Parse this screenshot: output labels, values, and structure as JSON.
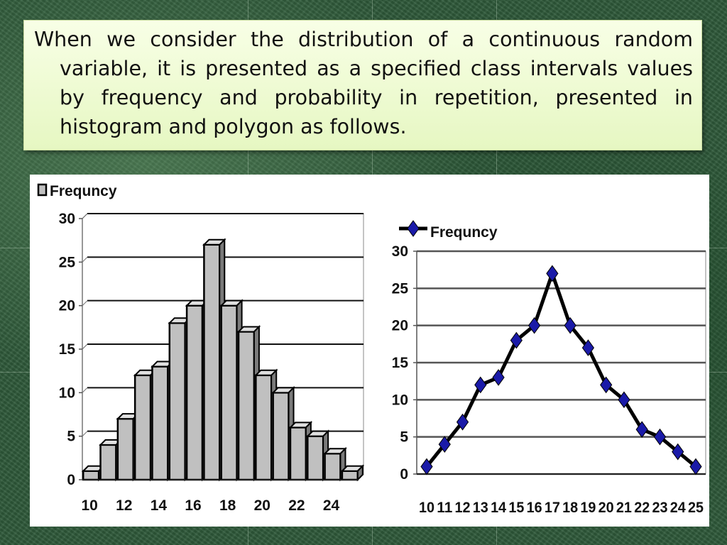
{
  "slide": {
    "text": "When we consider the distribution of a continuous random variable, it is presented as a specified class intervals values by frequency and probability in repetition, presented in histogram and polygon as follows."
  },
  "colors": {
    "background": "#2f5a3a",
    "text_box": "#eefbd6",
    "bar_fill": "#c0c0c0",
    "line_stroke": "#000000",
    "marker_fill": "#1a1aa8"
  },
  "chart_data": [
    {
      "type": "bar",
      "legend": "Frequncy",
      "categories": [
        10,
        11,
        12,
        13,
        14,
        15,
        16,
        17,
        18,
        19,
        20,
        21,
        22,
        23,
        24,
        25
      ],
      "x_tick_labels": [
        "10",
        "12",
        "14",
        "16",
        "18",
        "20",
        "22",
        "24"
      ],
      "values": [
        1,
        4,
        7,
        12,
        13,
        18,
        20,
        27,
        20,
        17,
        12,
        10,
        6,
        5,
        3,
        1
      ],
      "ylim": [
        0,
        30
      ],
      "y_tick_labels": [
        "0",
        "5",
        "10",
        "15",
        "20",
        "25",
        "30"
      ],
      "grid": true,
      "legend_position": "top-left"
    },
    {
      "type": "line",
      "legend": "Frequncy",
      "categories": [
        10,
        11,
        12,
        13,
        14,
        15,
        16,
        17,
        18,
        19,
        20,
        21,
        22,
        23,
        24,
        25
      ],
      "x_tick_labels": [
        "10",
        "11",
        "12",
        "13",
        "14",
        "15",
        "16",
        "17",
        "18",
        "19",
        "20",
        "21",
        "22",
        "23",
        "24",
        "25"
      ],
      "values": [
        1,
        4,
        7,
        12,
        13,
        18,
        20,
        27,
        20,
        17,
        12,
        10,
        6,
        5,
        3,
        1
      ],
      "ylim": [
        0,
        30
      ],
      "y_tick_labels": [
        "0",
        "5",
        "10",
        "15",
        "20",
        "25",
        "30"
      ],
      "grid": true,
      "legend_position": "top-left"
    }
  ]
}
